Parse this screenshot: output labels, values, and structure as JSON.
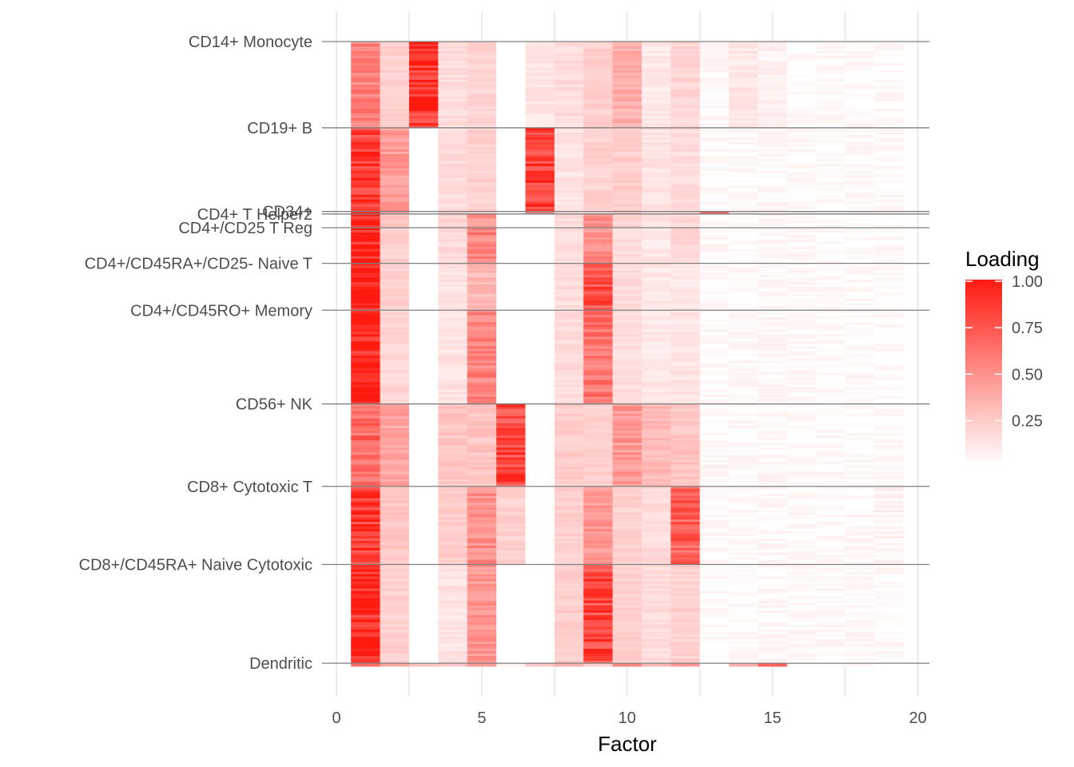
{
  "chart_data": {
    "type": "heatmap",
    "title": "",
    "xlabel": "Factor",
    "ylabel": "",
    "xlim": [
      0,
      20
    ],
    "x_ticks": [
      0,
      5,
      10,
      15,
      20
    ],
    "factors": [
      1,
      2,
      3,
      4,
      5,
      6,
      7,
      8,
      9,
      10,
      11,
      12,
      13,
      14,
      15,
      16,
      17,
      18,
      19
    ],
    "grid": true,
    "legend": {
      "title": "Loading",
      "position": "right",
      "breaks": [
        1.0,
        0.75,
        0.5,
        0.25
      ],
      "break_labels": [
        "1.00",
        "0.75",
        "0.50",
        "0.25"
      ],
      "low_color": "#ffffff",
      "high_color": "#ff1a10"
    },
    "cell_types": [
      {
        "name": "CD14+ Monocyte",
        "range": [
          0.0,
          0.138
        ],
        "loadings": [
          0.55,
          0.2,
          0.9,
          0.15,
          0.18,
          0.0,
          0.12,
          0.15,
          0.2,
          0.35,
          0.1,
          0.18,
          0.03,
          0.1,
          0.06,
          0.02,
          0.02,
          0.02,
          0.02
        ]
      },
      {
        "name": "CD19+ B",
        "range": [
          0.138,
          0.272
        ],
        "loadings": [
          0.85,
          0.45,
          0.0,
          0.15,
          0.2,
          0.0,
          0.85,
          0.12,
          0.2,
          0.22,
          0.12,
          0.15,
          0.02,
          0.02,
          0.03,
          0.02,
          0.02,
          0.02,
          0.02
        ]
      },
      {
        "name": "CD34+",
        "range": [
          0.272,
          0.276
        ],
        "loadings": [
          0.85,
          0.45,
          0.0,
          0.15,
          0.2,
          0.0,
          0.5,
          0.12,
          0.2,
          0.22,
          0.12,
          0.15,
          0.8,
          0.02,
          0.03,
          0.02,
          0.02,
          0.02,
          0.02
        ]
      },
      {
        "name": "CD4+ T Helper2",
        "range": [
          0.276,
          0.298
        ],
        "loadings": [
          0.92,
          0.25,
          0.0,
          0.18,
          0.45,
          0.0,
          0.0,
          0.15,
          0.55,
          0.2,
          0.12,
          0.15,
          0.02,
          0.02,
          0.03,
          0.02,
          0.02,
          0.02,
          0.02
        ]
      },
      {
        "name": "CD4+/CD25 T Reg",
        "range": [
          0.298,
          0.355
        ],
        "loadings": [
          0.95,
          0.2,
          0.0,
          0.15,
          0.55,
          0.0,
          0.0,
          0.15,
          0.5,
          0.15,
          0.1,
          0.18,
          0.02,
          0.02,
          0.03,
          0.02,
          0.02,
          0.02,
          0.02
        ]
      },
      {
        "name": "CD4+/CD45RA+/CD25- Naive T",
        "range": [
          0.355,
          0.43
        ],
        "loadings": [
          0.97,
          0.2,
          0.0,
          0.12,
          0.3,
          0.0,
          0.0,
          0.15,
          0.75,
          0.15,
          0.1,
          0.1,
          0.02,
          0.02,
          0.03,
          0.02,
          0.02,
          0.02,
          0.02
        ]
      },
      {
        "name": "CD4+/CD45RO+ Memory",
        "range": [
          0.43,
          0.58
        ],
        "loadings": [
          0.97,
          0.18,
          0.0,
          0.12,
          0.55,
          0.0,
          0.0,
          0.15,
          0.6,
          0.15,
          0.1,
          0.12,
          0.02,
          0.02,
          0.03,
          0.02,
          0.02,
          0.02,
          0.02
        ]
      },
      {
        "name": "CD56+ NK",
        "range": [
          0.58,
          0.712
        ],
        "loadings": [
          0.65,
          0.4,
          0.0,
          0.25,
          0.25,
          0.8,
          0.0,
          0.22,
          0.2,
          0.45,
          0.3,
          0.25,
          0.02,
          0.02,
          0.03,
          0.02,
          0.02,
          0.02,
          0.02
        ]
      },
      {
        "name": "CD8+ Cytotoxic T",
        "range": [
          0.712,
          0.837
        ],
        "loadings": [
          0.88,
          0.25,
          0.0,
          0.22,
          0.5,
          0.2,
          0.0,
          0.2,
          0.45,
          0.2,
          0.15,
          0.7,
          0.02,
          0.02,
          0.03,
          0.02,
          0.02,
          0.02,
          0.05
        ]
      },
      {
        "name": "CD8+/CD45RA+ Naive Cytotoxic",
        "range": [
          0.837,
          0.995
        ],
        "loadings": [
          0.95,
          0.2,
          0.0,
          0.12,
          0.45,
          0.0,
          0.0,
          0.22,
          0.8,
          0.2,
          0.15,
          0.2,
          0.02,
          0.02,
          0.03,
          0.02,
          0.02,
          0.02,
          0.02
        ]
      },
      {
        "name": "Dendritic",
        "range": [
          0.995,
          1.0
        ],
        "loadings": [
          0.8,
          0.4,
          0.3,
          0.2,
          0.5,
          0.05,
          0.2,
          0.3,
          0.2,
          0.5,
          0.3,
          0.45,
          0.02,
          0.3,
          0.8,
          0.02,
          0.02,
          0.02,
          0.02
        ]
      }
    ]
  }
}
